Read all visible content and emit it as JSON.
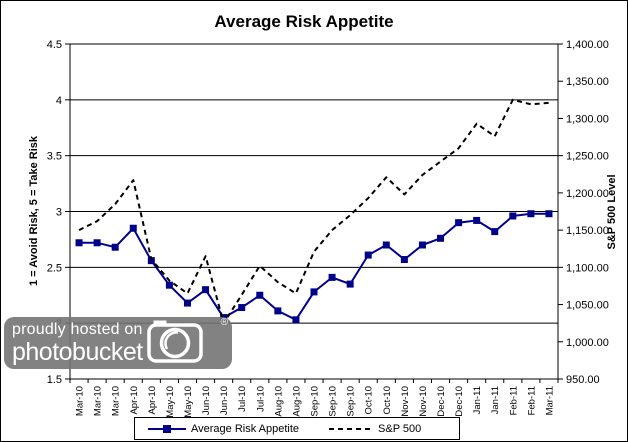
{
  "chart_data": {
    "type": "line",
    "title": "Average Risk Appetite",
    "categories": [
      "Mar-10",
      "Mar-10",
      "Mar-10",
      "Apr-10",
      "Apr-10",
      "May-10",
      "May-10",
      "Jun-10",
      "Jun-10",
      "Jul-10",
      "Jul-10",
      "Aug-10",
      "Aug-10",
      "Sep-10",
      "Sep-10",
      "Sep-10",
      "Oct-10",
      "Oct-10",
      "Nov-10",
      "Nov-10",
      "Dec-10",
      "Dec-10",
      "Jan-11",
      "Jan-11",
      "Feb-11",
      "Feb-11",
      "Mar-11"
    ],
    "series": [
      {
        "name": "Average Risk Appetite",
        "axis": "left",
        "style": "solid",
        "marker": "square",
        "color": "#00008B",
        "values": [
          2.72,
          2.72,
          2.68,
          2.85,
          2.56,
          2.34,
          2.18,
          2.3,
          2.05,
          2.14,
          2.25,
          2.11,
          2.03,
          2.28,
          2.41,
          2.35,
          2.61,
          2.7,
          2.57,
          2.7,
          2.76,
          2.9,
          2.92,
          2.82,
          2.96,
          2.98,
          2.98
        ]
      },
      {
        "name": "S&P 500",
        "axis": "right",
        "style": "dashed",
        "marker": "none",
        "color": "#000000",
        "values": [
          1150,
          1162,
          1185,
          1217,
          1111,
          1082,
          1065,
          1115,
          1025,
          1063,
          1102,
          1080,
          1065,
          1121,
          1150,
          1170,
          1193,
          1221,
          1198,
          1224,
          1242,
          1260,
          1293,
          1276,
          1325,
          1319,
          1321
        ]
      }
    ],
    "left_axis": {
      "title": "1 = Avoid Risk, 5 = Take Risk",
      "min": 1.5,
      "max": 4.5,
      "step": 0.5,
      "tick_labels": [
        "4.5",
        "4",
        "3.5",
        "3",
        "2.5",
        "2",
        "1.5"
      ]
    },
    "right_axis": {
      "title": "S&P 500 Level",
      "min": 950,
      "max": 1400,
      "step": 50,
      "tick_labels": [
        "1,400.00",
        "1,350.00",
        "1,300.00",
        "1,250.00",
        "1,200.00",
        "1,150.00",
        "1,100.00",
        "1,050.00",
        "1,000.00",
        "950.00"
      ]
    },
    "grid": "horizontal gridlines at left-axis ticks only",
    "legend_position": "bottom"
  },
  "watermark": {
    "line1": "proudly hosted on",
    "line2": "photobucket",
    "registered": "®"
  },
  "colors": {
    "risk_appetite_line": "#00008B",
    "sp500_line": "#000000",
    "background": "#FFFFFF",
    "watermark_bg": "#747474",
    "axis_and_grid": "#000000"
  }
}
